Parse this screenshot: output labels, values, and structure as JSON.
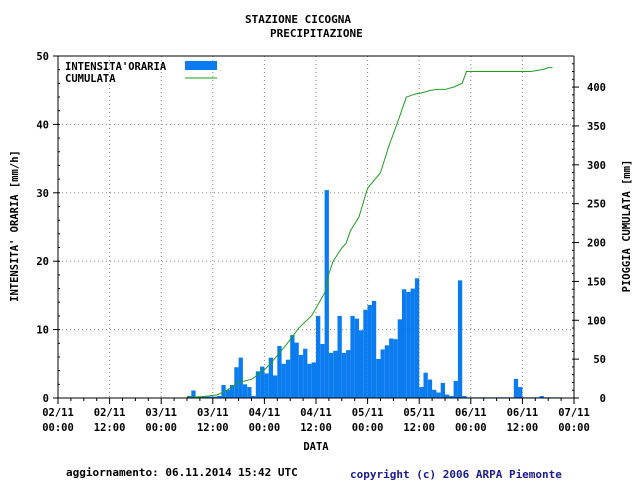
{
  "header": {
    "station": "STAZIONE CICOGNA",
    "variable": "PRECIPITAZIONE"
  },
  "footer": {
    "updated": "aggiornamento: 06.11.2014 15:42 UTC",
    "copyright": "copyright (c) 2006 ARPA Piemonte"
  },
  "colors": {
    "bars": "#0a7cf0",
    "cumulative": "#1f9e1f",
    "grid": "#888888"
  },
  "chart_data": {
    "type": "bar",
    "grid": true,
    "legend_position": "top-left",
    "xlabel": "DATA",
    "ylabel": "INTENSITA' ORARIA [mm/h]",
    "y2label": "PIOGGIA CUMULATA [mm]",
    "ylim": [
      0,
      50
    ],
    "y2lim": [
      0,
      440
    ],
    "yticks": [
      "0",
      "10",
      "20",
      "30",
      "40",
      "50"
    ],
    "y2ticks": [
      "0",
      "50",
      "100",
      "150",
      "200",
      "250",
      "300",
      "350",
      "400"
    ],
    "xticks": [
      [
        "02/11",
        "00:00"
      ],
      [
        "02/11",
        "12:00"
      ],
      [
        "03/11",
        "00:00"
      ],
      [
        "03/11",
        "12:00"
      ],
      [
        "04/11",
        "00:00"
      ],
      [
        "04/11",
        "12:00"
      ],
      [
        "05/11",
        "00:00"
      ],
      [
        "05/11",
        "12:00"
      ],
      [
        "06/11",
        "00:00"
      ],
      [
        "06/11",
        "12:00"
      ],
      [
        "07/11",
        "00:00"
      ]
    ],
    "x_unit": "hours from 02/11 00:00",
    "series": [
      {
        "name": "INTENSITA'ORARIA",
        "kind": "bar",
        "hours": [
          30,
          31,
          32,
          33,
          34,
          35,
          36,
          37,
          38,
          39,
          40,
          41,
          42,
          43,
          44,
          45,
          46,
          47,
          48,
          49,
          50,
          51,
          52,
          53,
          54,
          55,
          56,
          57,
          58,
          59,
          60,
          61,
          62,
          63,
          64,
          65,
          66,
          67,
          68,
          69,
          70,
          71,
          72,
          73,
          74,
          75,
          76,
          77,
          78,
          79,
          80,
          81,
          82,
          83,
          84,
          85,
          86,
          87,
          88,
          89,
          90,
          91,
          92,
          93,
          94,
          95,
          96,
          97,
          98,
          99,
          100,
          101,
          102,
          103,
          104,
          105,
          106,
          107,
          108,
          109,
          110,
          111,
          112,
          113,
          114,
          115,
          116
        ],
        "values": [
          0.3,
          1.1,
          0.2,
          0.2,
          0.2,
          0.2,
          0.2,
          0.3,
          1.9,
          1.2,
          1.9,
          4.5,
          5.9,
          2.0,
          1.6,
          0.3,
          3.9,
          4.6,
          3.6,
          5.9,
          3.3,
          7.6,
          5.0,
          5.6,
          9.2,
          8.1,
          6.3,
          7.2,
          5.0,
          5.2,
          12.0,
          7.9,
          30.4,
          6.6,
          6.9,
          12.0,
          6.6,
          7.0,
          12.0,
          11.6,
          9.9,
          12.9,
          13.6,
          14.2,
          5.7,
          7.1,
          7.7,
          8.7,
          8.6,
          11.5,
          15.9,
          15.5,
          16.0,
          17.5,
          1.6,
          3.7,
          2.7,
          1.2,
          0.8,
          2.2,
          0.5,
          0.3,
          2.5,
          17.2,
          0.3,
          0.1,
          0.1,
          0.1,
          0.1,
          0.1,
          0.1,
          0.1,
          0.1,
          0.1,
          0.1,
          0.1,
          2.8,
          1.6,
          0.1,
          0.1,
          0.1,
          0.1,
          0.3,
          0.1,
          0.1,
          0.1,
          0.1
        ]
      },
      {
        "name": "CUMULATA",
        "kind": "line",
        "axis": "right",
        "x": [
          30,
          31,
          34,
          37,
          39,
          42,
          45,
          48,
          50,
          53,
          56,
          59,
          62,
          63,
          64,
          66,
          67,
          68,
          70,
          72,
          75,
          77,
          79,
          81,
          83,
          85,
          86,
          88,
          90,
          92,
          94,
          95,
          96,
          99,
          100,
          110,
          113,
          114,
          115
        ],
        "y": [
          0,
          1,
          2,
          4,
          9,
          20,
          24,
          36,
          48,
          68,
          90,
          106,
          135,
          160,
          176,
          193,
          199,
          215,
          233,
          270,
          290,
          325,
          355,
          387,
          391,
          393,
          395,
          397,
          397,
          400,
          405,
          420,
          420,
          420,
          420,
          420,
          423,
          425,
          425
        ]
      }
    ]
  }
}
